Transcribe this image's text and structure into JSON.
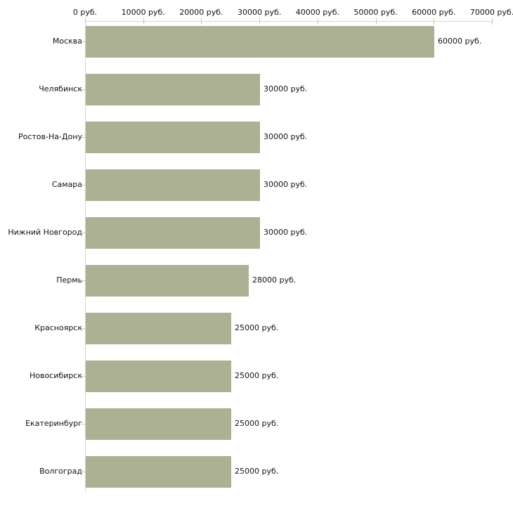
{
  "chart_data": {
    "type": "bar",
    "orientation": "horizontal",
    "title": "",
    "xlabel": "",
    "ylabel": "",
    "unit": "руб.",
    "categories": [
      "Москва",
      "Челябинск",
      "Ростов-На-Дону",
      "Самара",
      "Нижний Новгород",
      "Пермь",
      "Красноярск",
      "Новосибирск",
      "Екатеринбург",
      "Волгоград"
    ],
    "values": [
      60000,
      30000,
      30000,
      30000,
      30000,
      28000,
      25000,
      25000,
      25000,
      25000
    ],
    "value_labels": [
      "60000 руб.",
      "30000 руб.",
      "30000 руб.",
      "30000 руб.",
      "30000 руб.",
      "28000 руб.",
      "25000 руб.",
      "25000 руб.",
      "25000 руб.",
      "25000 руб."
    ],
    "xlim": [
      0,
      70000
    ],
    "x_ticks": [
      0,
      10000,
      20000,
      30000,
      40000,
      50000,
      60000,
      70000
    ],
    "x_tick_labels": [
      "0 руб.",
      "10000 руб.",
      "20000 руб.",
      "30000 руб.",
      "40000 руб.",
      "50000 руб.",
      "60000 руб.",
      "70000 руб."
    ],
    "axis_position": "top",
    "grid": false,
    "legend": false,
    "colors": {
      "bar": "#adb194",
      "axis_line": "#d4d4d4",
      "tick": "#c6c9a4",
      "text": "#111111",
      "background": "#ffffff"
    }
  }
}
